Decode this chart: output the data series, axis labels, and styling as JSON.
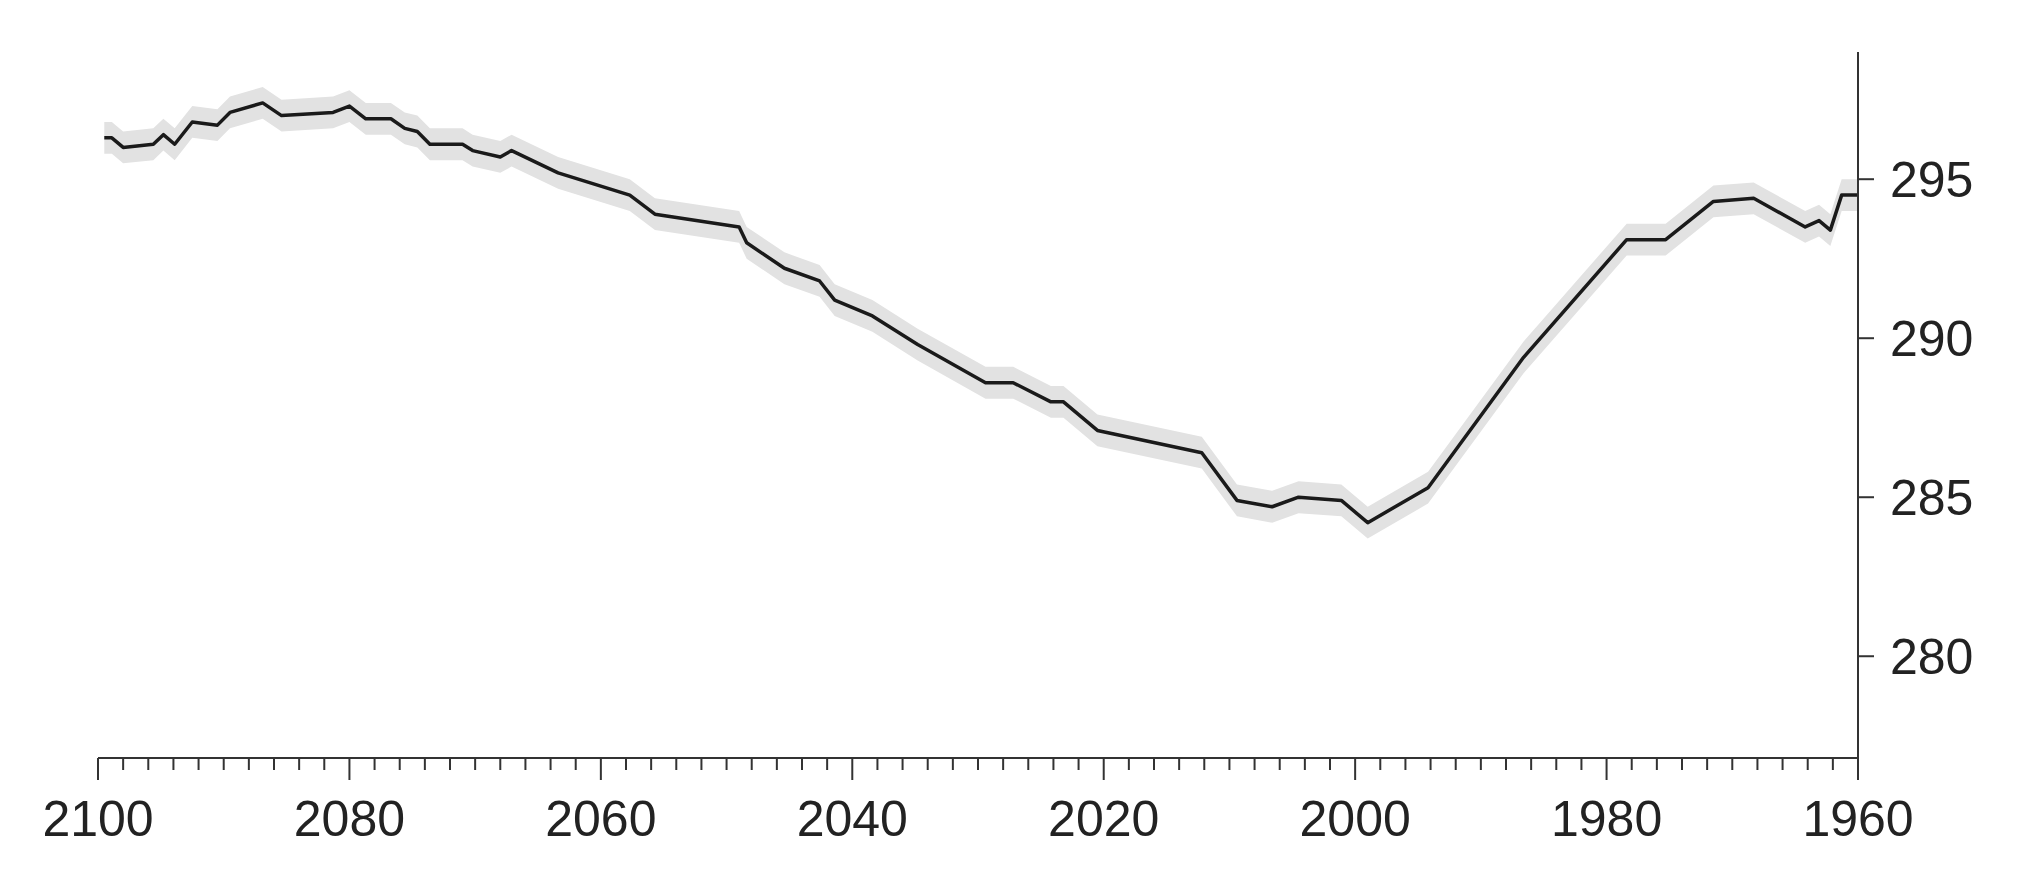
{
  "chart_data": {
    "type": "line",
    "x": [
      2099.5,
      2098.9,
      2098.0,
      2095.6,
      2094.8,
      2093.9,
      2092.5,
      2090.5,
      2089.5,
      2086.9,
      2085.4,
      2081.3,
      2080.0,
      2078.7,
      2076.7,
      2075.6,
      2074.6,
      2073.6,
      2071.0,
      2070.2,
      2068.0,
      2067.1,
      2063.4,
      2057.7,
      2055.7,
      2049.0,
      2048.4,
      2045.4,
      2042.6,
      2041.4,
      2038.4,
      2034.8,
      2029.4,
      2027.2,
      2024.2,
      2023.2,
      2020.5,
      2012.2,
      2009.4,
      2006.6,
      2004.5,
      2001.1,
      1999.0,
      1994.2,
      1986.6,
      1978.4,
      1975.3,
      1971.5,
      1968.3,
      1964.2,
      1963.1,
      1962.2,
      1961.3,
      1960.0
    ],
    "series": [
      {
        "color": "#1a1a1a",
        "values": [
          296.3,
          296.3,
          296.0,
          296.1,
          296.4,
          296.1,
          296.8,
          296.7,
          297.1,
          297.4,
          297.0,
          297.1,
          297.3,
          296.9,
          296.9,
          296.6,
          296.5,
          296.1,
          296.1,
          295.9,
          295.7,
          295.9,
          295.2,
          294.5,
          293.9,
          293.5,
          293.0,
          292.2,
          291.8,
          291.2,
          290.7,
          289.8,
          288.6,
          288.6,
          288.0,
          288.0,
          287.1,
          286.4,
          284.9,
          284.7,
          285.0,
          284.9,
          284.2,
          285.3,
          289.4,
          293.1,
          293.1,
          294.3,
          294.4,
          293.5,
          293.7,
          293.4,
          294.5,
          294.5
        ],
        "lower": [
          295.8,
          295.8,
          295.5,
          295.6,
          295.9,
          295.6,
          296.3,
          296.2,
          296.6,
          296.9,
          296.5,
          296.6,
          296.8,
          296.4,
          296.4,
          296.1,
          296.0,
          295.6,
          295.6,
          295.4,
          295.2,
          295.4,
          294.7,
          294.0,
          293.4,
          293.0,
          292.5,
          291.7,
          291.3,
          290.7,
          290.2,
          289.3,
          288.1,
          288.1,
          287.5,
          287.5,
          286.6,
          285.9,
          284.4,
          284.2,
          284.5,
          284.4,
          283.7,
          284.8,
          288.9,
          292.6,
          292.6,
          293.8,
          293.9,
          293.0,
          293.2,
          292.9,
          294.0,
          294.0
        ],
        "upper": [
          296.8,
          296.8,
          296.5,
          296.6,
          296.9,
          296.6,
          297.3,
          297.2,
          297.6,
          297.9,
          297.5,
          297.6,
          297.8,
          297.4,
          297.4,
          297.1,
          297.0,
          296.6,
          296.6,
          296.4,
          296.2,
          296.4,
          295.7,
          295.0,
          294.4,
          294.0,
          293.5,
          292.7,
          292.3,
          291.7,
          291.2,
          290.3,
          289.1,
          289.1,
          288.5,
          288.5,
          287.6,
          286.9,
          285.4,
          285.2,
          285.5,
          285.4,
          284.7,
          285.8,
          289.9,
          293.6,
          293.6,
          294.8,
          294.9,
          294.0,
          294.2,
          293.9,
          295.0,
          295.0
        ]
      }
    ],
    "xlim": [
      2100,
      1960
    ],
    "xticks": [
      2100,
      {
        "value": 2098,
        "label": null
      },
      {
        "value": 2096,
        "label": null
      },
      {
        "value": 2094,
        "label": null
      },
      {
        "value": 2092,
        "label": null
      },
      {
        "value": 2090,
        "label": null
      },
      {
        "value": 2088,
        "label": null
      },
      {
        "value": 2086,
        "label": null
      },
      {
        "value": 2084,
        "label": null
      },
      {
        "value": 2082,
        "label": null
      },
      2080,
      {
        "value": 2078,
        "label": null
      },
      {
        "value": 2076,
        "label": null
      },
      {
        "value": 2074,
        "label": null
      },
      {
        "value": 2072,
        "label": null
      },
      {
        "value": 2070,
        "label": null
      },
      {
        "value": 2068,
        "label": null
      },
      {
        "value": 2066,
        "label": null
      },
      {
        "value": 2064,
        "label": null
      },
      {
        "value": 2062,
        "label": null
      },
      2060,
      {
        "value": 2058,
        "label": null
      },
      {
        "value": 2056,
        "label": null
      },
      {
        "value": 2054,
        "label": null
      },
      {
        "value": 2052,
        "label": null
      },
      {
        "value": 2050,
        "label": null
      },
      {
        "value": 2048,
        "label": null
      },
      {
        "value": 2046,
        "label": null
      },
      {
        "value": 2044,
        "label": null
      },
      {
        "value": 2042,
        "label": null
      },
      2040,
      {
        "value": 2038,
        "label": null
      },
      {
        "value": 2036,
        "label": null
      },
      {
        "value": 2034,
        "label": null
      },
      {
        "value": 2032,
        "label": null
      },
      {
        "value": 2030,
        "label": null
      },
      {
        "value": 2028,
        "label": null
      },
      {
        "value": 2026,
        "label": null
      },
      {
        "value": 2024,
        "label": null
      },
      {
        "value": 2022,
        "label": null
      },
      2020,
      {
        "value": 2018,
        "label": null
      },
      {
        "value": 2016,
        "label": null
      },
      {
        "value": 2014,
        "label": null
      },
      {
        "value": 2012,
        "label": null
      },
      {
        "value": 2010,
        "label": null
      },
      {
        "value": 2008,
        "label": null
      },
      {
        "value": 2006,
        "label": null
      },
      {
        "value": 2004,
        "label": null
      },
      {
        "value": 2002,
        "label": null
      },
      2000,
      {
        "value": 1998,
        "label": null
      },
      {
        "value": 1996,
        "label": null
      },
      {
        "value": 1994,
        "label": null
      },
      {
        "value": 1992,
        "label": null
      },
      {
        "value": 1990,
        "label": null
      },
      {
        "value": 1988,
        "label": null
      },
      {
        "value": 1986,
        "label": null
      },
      {
        "value": 1984,
        "label": null
      },
      {
        "value": 1982,
        "label": null
      },
      1980,
      {
        "value": 1978,
        "label": null
      },
      {
        "value": 1976,
        "label": null
      },
      {
        "value": 1974,
        "label": null
      },
      {
        "value": 1972,
        "label": null
      },
      {
        "value": 1970,
        "label": null
      },
      {
        "value": 1968,
        "label": null
      },
      {
        "value": 1966,
        "label": null
      },
      {
        "value": 1964,
        "label": null
      },
      {
        "value": 1962,
        "label": null
      },
      1960
    ],
    "ylim": [
      276.8,
      299.0
    ],
    "yticks": [
      280,
      285,
      290,
      295
    ],
    "grid": false,
    "legend": false,
    "marker": "none",
    "line_style": "solid"
  }
}
